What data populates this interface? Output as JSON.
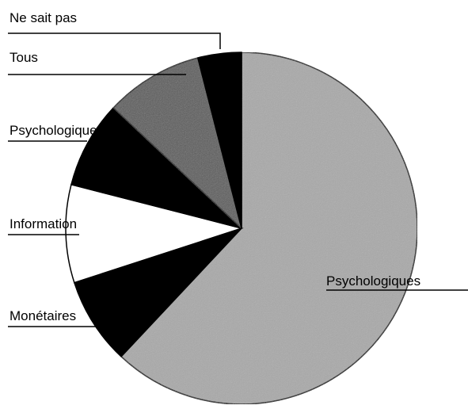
{
  "chart_data": {
    "type": "pie",
    "categories": [
      "Psychologiques",
      "Monétaires",
      "Information",
      "Psychologique+Info",
      "Tous",
      "Ne sait pas"
    ],
    "values": [
      62,
      8,
      9,
      8,
      9,
      4
    ],
    "colors": [
      "#a9a9a9",
      "#000000",
      "#ffffff",
      "#000000",
      "#5c5c5c",
      "#000000"
    ]
  }
}
